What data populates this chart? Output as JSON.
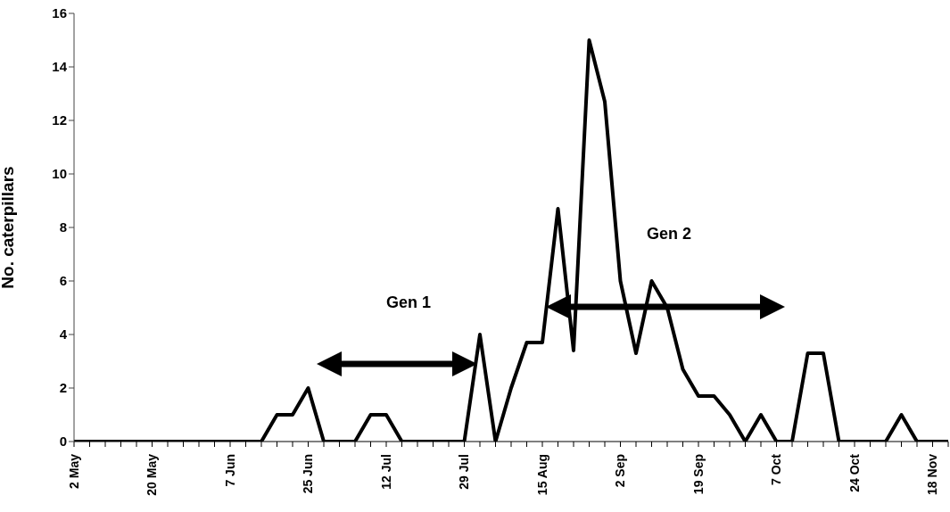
{
  "chart_data": {
    "type": "line",
    "ylabel": "No. caterpillars",
    "categories": [
      "2 May",
      null,
      null,
      null,
      null,
      "20 May",
      null,
      null,
      null,
      null,
      "7 Jun",
      null,
      null,
      null,
      null,
      "25 Jun",
      null,
      null,
      null,
      null,
      "12 Jul",
      null,
      null,
      null,
      null,
      "29 Jul",
      null,
      null,
      null,
      null,
      "15 Aug",
      null,
      null,
      null,
      null,
      "2 Sep",
      null,
      null,
      null,
      null,
      "19 Sep",
      null,
      null,
      null,
      null,
      "7 Oct",
      null,
      null,
      null,
      null,
      "24 Oct",
      null,
      null,
      null,
      null,
      "18 Nov",
      null
    ],
    "series": [
      {
        "color": "#000000",
        "values": [
          0,
          0,
          0,
          0,
          0,
          0,
          0,
          0,
          0,
          0,
          0,
          0,
          0,
          1,
          1,
          2,
          0,
          0,
          0,
          1,
          1,
          0,
          0,
          0,
          0,
          0,
          4,
          0,
          2,
          3.7,
          3.7,
          8.7,
          3.4,
          15,
          12.7,
          6,
          3.3,
          6,
          5,
          2.7,
          1.7,
          1.7,
          1,
          0,
          1,
          0,
          0,
          3.3,
          3.3,
          0,
          0,
          0,
          0,
          1,
          0,
          0,
          0
        ]
      }
    ],
    "ylim": [
      0,
      16
    ],
    "yticks": [
      0,
      2,
      4,
      6,
      8,
      10,
      12,
      14,
      16
    ],
    "marker": "none",
    "line_style": "solid",
    "annotations": [
      "Gen 1",
      "Gen 2"
    ]
  }
}
